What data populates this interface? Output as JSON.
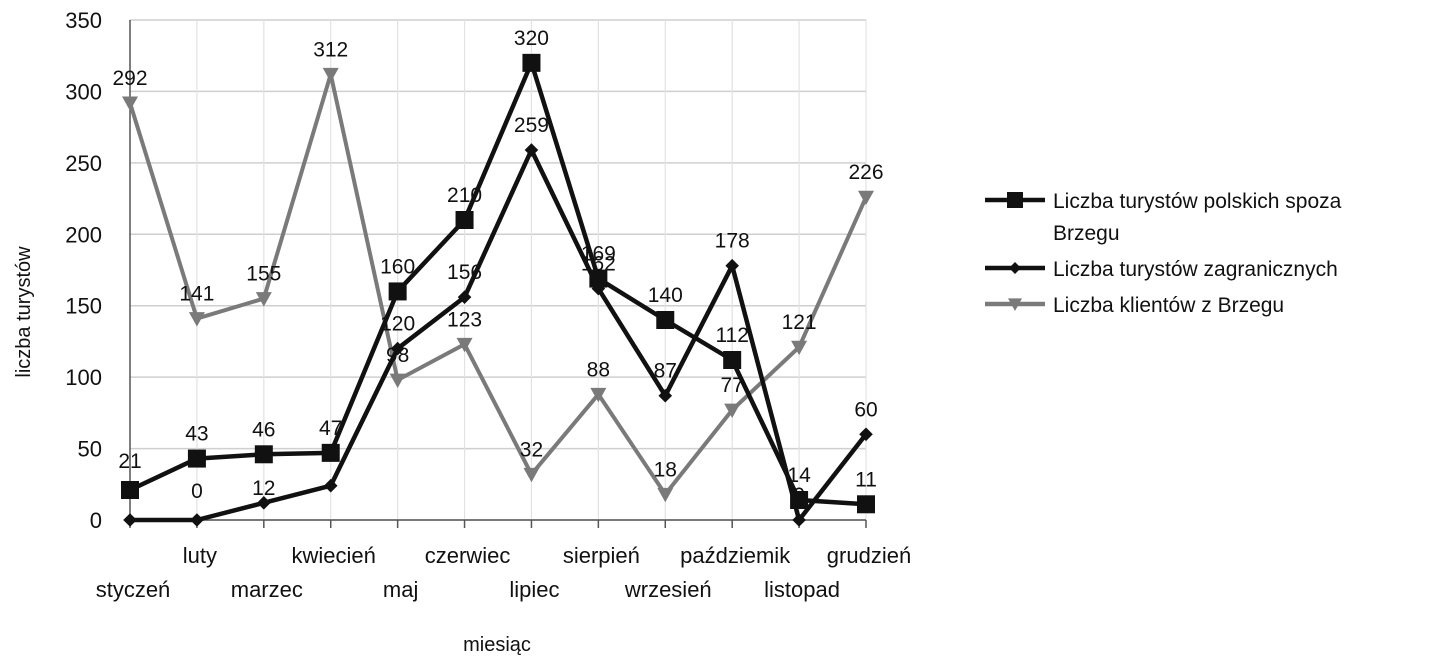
{
  "chart_data": {
    "type": "line",
    "title": "",
    "xlabel": "miesiąc",
    "ylabel": "liczba turystów",
    "ylim": [
      0,
      350
    ],
    "yticks": [
      0,
      50,
      100,
      150,
      200,
      250,
      300,
      350
    ],
    "grid": true,
    "legend_position": "right",
    "categories": [
      "styczeń",
      "luty",
      "marzec",
      "kwiecień",
      "maj",
      "czerwiec",
      "lipiec",
      "sierpień",
      "wrzesień",
      "paździemik",
      "listopad",
      "grudzień"
    ],
    "series": [
      {
        "name": "Liczba turystów polskich spoza Brzegu",
        "legend_lines": [
          "Liczba turystów polskich spoza",
          "Brzegu"
        ],
        "marker": "square",
        "color": "#111111",
        "values": [
          21,
          43,
          46,
          47,
          160,
          210,
          320,
          169,
          140,
          112,
          14,
          11
        ]
      },
      {
        "name": "Liczba turystów zagranicznych",
        "legend_lines": [
          "Liczba turystów zagranicznych"
        ],
        "marker": "diamond",
        "color": "#111111",
        "values": [
          0,
          0,
          12,
          24,
          120,
          156,
          259,
          162,
          87,
          178,
          0,
          60
        ]
      },
      {
        "name": "Liczba klientów z Brzegu",
        "legend_lines": [
          "Liczba klientów z Brzegu"
        ],
        "marker": "triangle-down",
        "color": "#7a7a7a",
        "values": [
          292,
          141,
          155,
          312,
          98,
          123,
          32,
          88,
          18,
          77,
          121,
          226
        ]
      }
    ],
    "data_labels": [
      [
        "21",
        "43",
        "46",
        "47",
        "160",
        "210",
        "320",
        "169",
        "140",
        "112",
        "14",
        "11"
      ],
      [
        "0",
        "0",
        "12",
        "",
        "120",
        "156",
        "259",
        "162",
        "87",
        "178",
        "0",
        "60"
      ],
      [
        "292",
        "141",
        "155",
        "312",
        "98",
        "123",
        "32",
        "88",
        "18",
        "77",
        "121",
        "226"
      ]
    ]
  }
}
